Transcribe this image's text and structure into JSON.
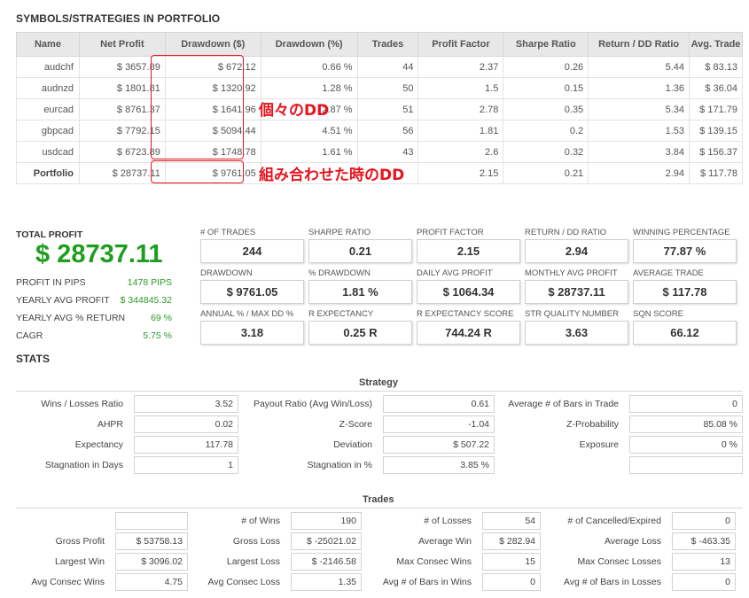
{
  "portfolio_title": "SYMBOLS/STRATEGIES IN PORTFOLIO",
  "table": {
    "headers": [
      "Name",
      "Net Profit",
      "Drawdown ($)",
      "Drawdown (%)",
      "Trades",
      "Profit Factor",
      "Sharpe Ratio",
      "Return / DD Ratio",
      "Avg. Trade"
    ],
    "rows": [
      [
        "audchf",
        "$ 3657.89",
        "$ 672.12",
        "0.66 %",
        "44",
        "2.37",
        "0.26",
        "5.44",
        "$ 83.13"
      ],
      [
        "audnzd",
        "$ 1801.81",
        "$ 1320.92",
        "1.28 %",
        "50",
        "1.5",
        "0.15",
        "1.36",
        "$ 36.04"
      ],
      [
        "eurcad",
        "$ 8761.37",
        "$ 1641.96",
        "2.87 %",
        "51",
        "2.78",
        "0.35",
        "5.34",
        "$ 171.79"
      ],
      [
        "gbpcad",
        "$ 7792.15",
        "$ 5094.44",
        "4.51 %",
        "56",
        "1.81",
        "0.2",
        "1.53",
        "$ 139.15"
      ],
      [
        "usdcad",
        "$ 6723.89",
        "$ 1748.78",
        "1.61 %",
        "43",
        "2.6",
        "0.32",
        "3.84",
        "$ 156.37"
      ]
    ],
    "portfolio_row": [
      "Portfolio",
      "$ 28737.11",
      "$ 9761.05",
      "",
      "",
      "2.15",
      "0.21",
      "2.94",
      "$ 117.78"
    ]
  },
  "annotations": {
    "individual_dd": "個々のDD",
    "combined_dd": "組み合わせた時のDD"
  },
  "total_profit": {
    "label": "TOTAL PROFIT",
    "value": "$ 28737.11",
    "items": [
      {
        "label": "PROFIT IN PIPS",
        "value": "1478 PIPS"
      },
      {
        "label": "YEARLY AVG PROFIT",
        "value": "$ 344845.32"
      },
      {
        "label": "YEARLY AVG % RETURN",
        "value": "69 %"
      },
      {
        "label": "CAGR",
        "value": "5.75 %"
      }
    ]
  },
  "cards": [
    {
      "label": "# OF TRADES",
      "value": "244"
    },
    {
      "label": "SHARPE RATIO",
      "value": "0.21"
    },
    {
      "label": "PROFIT FACTOR",
      "value": "2.15"
    },
    {
      "label": "RETURN / DD RATIO",
      "value": "2.94"
    },
    {
      "label": "WINNING PERCENTAGE",
      "value": "77.87 %"
    },
    {
      "label": "DRAWDOWN",
      "value": "$ 9761.05"
    },
    {
      "label": "% DRAWDOWN",
      "value": "1.81 %"
    },
    {
      "label": "DAILY AVG PROFIT",
      "value": "$ 1064.34"
    },
    {
      "label": "MONTHLY AVG PROFIT",
      "value": "$ 28737.11"
    },
    {
      "label": "AVERAGE TRADE",
      "value": "$ 117.78"
    },
    {
      "label": "ANNUAL % / MAX DD %",
      "value": "3.18"
    },
    {
      "label": "R EXPECTANCY",
      "value": "0.25 R"
    },
    {
      "label": "R EXPECTANCY SCORE",
      "value": "744.24 R"
    },
    {
      "label": "STR QUALITY NUMBER",
      "value": "3.63"
    },
    {
      "label": "SQN SCORE",
      "value": "66.12"
    }
  ],
  "stats_title": "STATS",
  "strategy": {
    "title": "Strategy",
    "rows": [
      [
        [
          "Wins / Losses Ratio",
          "3.52"
        ],
        [
          "Payout Ratio (Avg Win/Loss)",
          "0.61"
        ],
        [
          "Average # of Bars in Trade",
          "0"
        ]
      ],
      [
        [
          "AHPR",
          "0.02"
        ],
        [
          "Z-Score",
          "-1.04"
        ],
        [
          "Z-Probability",
          "85.08 %"
        ]
      ],
      [
        [
          "Expectancy",
          "117.78"
        ],
        [
          "Deviation",
          "$ 507.22"
        ],
        [
          "Exposure",
          "0 %"
        ]
      ],
      [
        [
          "Stagnation in Days",
          "1"
        ],
        [
          "Stagnation in %",
          "3.85 %"
        ],
        [
          "",
          ""
        ]
      ]
    ]
  },
  "trades": {
    "title": "Trades",
    "rows": [
      [
        [
          "",
          ""
        ],
        [
          "# of Wins",
          "190"
        ],
        [
          "# of Losses",
          "54"
        ],
        [
          "# of Cancelled/Expired",
          "0"
        ]
      ],
      [
        [
          "Gross Profit",
          "$ 53758.13"
        ],
        [
          "Gross Loss",
          "$ -25021.02"
        ],
        [
          "Average Win",
          "$ 282.94"
        ],
        [
          "Average Loss",
          "$ -463.35"
        ]
      ],
      [
        [
          "Largest Win",
          "$ 3096.02"
        ],
        [
          "Largest Loss",
          "$ -2146.58"
        ],
        [
          "Max Consec Wins",
          "15"
        ],
        [
          "Max Consec Losses",
          "13"
        ]
      ],
      [
        [
          "Avg Consec Wins",
          "4.75"
        ],
        [
          "Avg Consec Loss",
          "1.35"
        ],
        [
          "Avg # of Bars in Wins",
          "0"
        ],
        [
          "Avg # of Bars in Losses",
          "0"
        ]
      ]
    ]
  },
  "colors": {
    "profit_green": "#1e9d1e",
    "annotation_red": "#e6141e"
  }
}
